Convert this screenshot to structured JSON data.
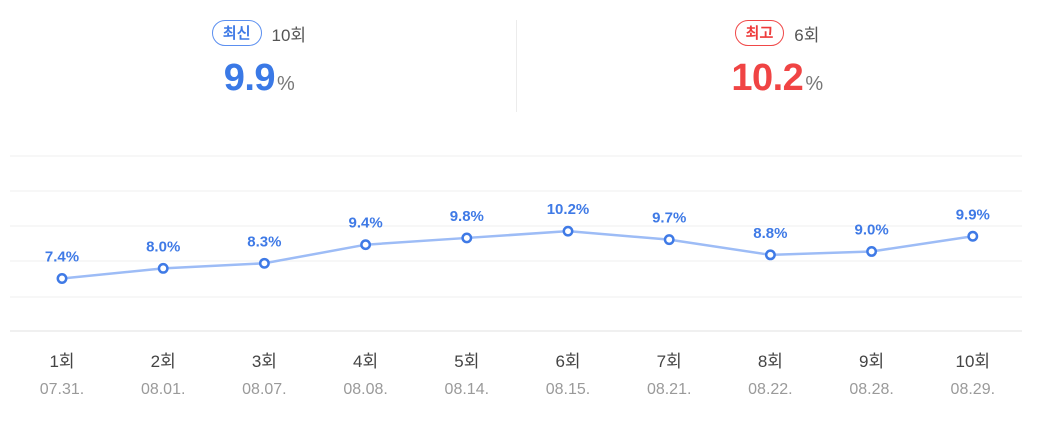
{
  "summary": {
    "latest": {
      "badge": "최신",
      "episode": "10회",
      "value": "9.9",
      "unit": "%"
    },
    "best": {
      "badge": "최고",
      "episode": "6회",
      "value": "10.2",
      "unit": "%"
    }
  },
  "colors": {
    "line": "#9dbcf6",
    "point": "#3f7ae6",
    "label": "#3f7ae6",
    "best": "#f04444",
    "grid": "#efefef"
  },
  "chart_data": {
    "type": "line",
    "categories": [
      "1회",
      "2회",
      "3회",
      "4회",
      "5회",
      "6회",
      "7회",
      "8회",
      "9회",
      "10회"
    ],
    "dates": [
      "07.31.",
      "08.01.",
      "08.07.",
      "08.08.",
      "08.14.",
      "08.15.",
      "08.21.",
      "08.22.",
      "08.28.",
      "08.29."
    ],
    "values": [
      7.4,
      8.0,
      8.3,
      9.4,
      9.8,
      10.2,
      9.7,
      8.8,
      9.0,
      9.9
    ],
    "value_labels": [
      "7.4%",
      "8.0%",
      "8.3%",
      "9.4%",
      "9.8%",
      "10.2%",
      "9.7%",
      "8.8%",
      "9.0%",
      "9.9%"
    ],
    "grid": true,
    "legend": "none"
  }
}
